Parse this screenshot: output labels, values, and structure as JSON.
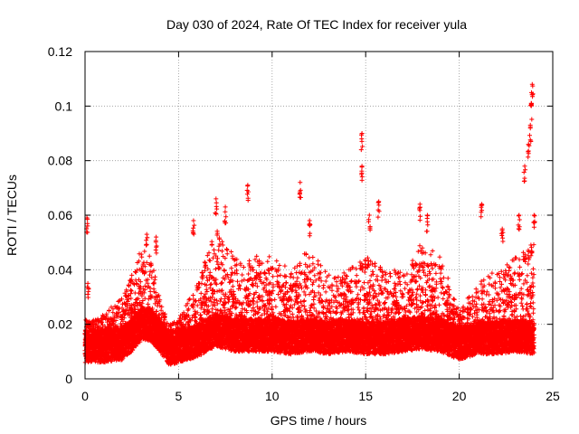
{
  "chart_data": {
    "type": "scatter",
    "title": "Day 030 of 2024, Rate Of TEC Index for receiver yula",
    "xlabel": "GPS time / hours",
    "ylabel": "ROTI / TECUs",
    "xlim": [
      0,
      25
    ],
    "ylim": [
      0,
      0.12
    ],
    "x_ticks": [
      0,
      5,
      10,
      15,
      20,
      25
    ],
    "x_tick_labels": [
      "0",
      "5",
      "10",
      "15",
      "20",
      "25"
    ],
    "y_ticks": [
      0,
      0.02,
      0.04,
      0.06,
      0.08,
      0.1,
      0.12
    ],
    "y_tick_labels": [
      "0",
      "0.02",
      "0.04",
      "0.06",
      "0.08",
      "0.1",
      "0.12"
    ],
    "grid": true,
    "marker": "+",
    "color": "#ff0000",
    "series": [
      {
        "name": "ROTI",
        "sample_interval_hours": 0.008333,
        "baseline_profile": [
          [
            0.0,
            0.012
          ],
          [
            1.0,
            0.012
          ],
          [
            2.0,
            0.013
          ],
          [
            2.5,
            0.016
          ],
          [
            3.0,
            0.02
          ],
          [
            3.5,
            0.02
          ],
          [
            4.0,
            0.016
          ],
          [
            4.5,
            0.011
          ],
          [
            5.0,
            0.012
          ],
          [
            6.0,
            0.014
          ],
          [
            7.0,
            0.018
          ],
          [
            8.0,
            0.016
          ],
          [
            9.0,
            0.016
          ],
          [
            10.0,
            0.016
          ],
          [
            11.0,
            0.015
          ],
          [
            12.0,
            0.016
          ],
          [
            13.0,
            0.015
          ],
          [
            14.0,
            0.016
          ],
          [
            15.0,
            0.015
          ],
          [
            16.0,
            0.015
          ],
          [
            17.0,
            0.016
          ],
          [
            18.0,
            0.017
          ],
          [
            19.0,
            0.016
          ],
          [
            20.0,
            0.013
          ],
          [
            21.0,
            0.015
          ],
          [
            22.0,
            0.015
          ],
          [
            23.0,
            0.016
          ],
          [
            24.0,
            0.015
          ]
        ],
        "envelope_profile": [
          [
            0.0,
            0.022
          ],
          [
            1.0,
            0.024
          ],
          [
            2.0,
            0.03
          ],
          [
            2.5,
            0.038
          ],
          [
            3.0,
            0.048
          ],
          [
            3.5,
            0.045
          ],
          [
            4.0,
            0.03
          ],
          [
            4.5,
            0.02
          ],
          [
            5.0,
            0.022
          ],
          [
            6.0,
            0.035
          ],
          [
            7.0,
            0.055
          ],
          [
            8.0,
            0.045
          ],
          [
            9.0,
            0.045
          ],
          [
            10.0,
            0.045
          ],
          [
            11.0,
            0.04
          ],
          [
            12.0,
            0.048
          ],
          [
            13.0,
            0.038
          ],
          [
            14.0,
            0.04
          ],
          [
            15.0,
            0.045
          ],
          [
            16.0,
            0.04
          ],
          [
            17.0,
            0.04
          ],
          [
            18.0,
            0.05
          ],
          [
            19.0,
            0.045
          ],
          [
            20.0,
            0.025
          ],
          [
            21.0,
            0.035
          ],
          [
            22.0,
            0.04
          ],
          [
            23.0,
            0.045
          ],
          [
            24.0,
            0.05
          ]
        ],
        "peaks": [
          [
            0.1,
            0.059
          ],
          [
            0.15,
            0.035
          ],
          [
            3.3,
            0.053
          ],
          [
            3.8,
            0.052
          ],
          [
            5.8,
            0.058
          ],
          [
            7.0,
            0.066
          ],
          [
            7.5,
            0.063
          ],
          [
            8.7,
            0.071
          ],
          [
            11.5,
            0.072
          ],
          [
            12.0,
            0.058
          ],
          [
            14.8,
            0.09
          ],
          [
            14.8,
            0.078
          ],
          [
            15.2,
            0.06
          ],
          [
            15.7,
            0.065
          ],
          [
            17.9,
            0.064
          ],
          [
            18.3,
            0.06
          ],
          [
            21.2,
            0.064
          ],
          [
            22.3,
            0.055
          ],
          [
            23.2,
            0.06
          ],
          [
            23.5,
            0.078
          ],
          [
            23.7,
            0.086
          ],
          [
            23.8,
            0.093
          ],
          [
            23.85,
            0.101
          ],
          [
            23.9,
            0.108
          ],
          [
            24.0,
            0.06
          ]
        ]
      }
    ]
  }
}
